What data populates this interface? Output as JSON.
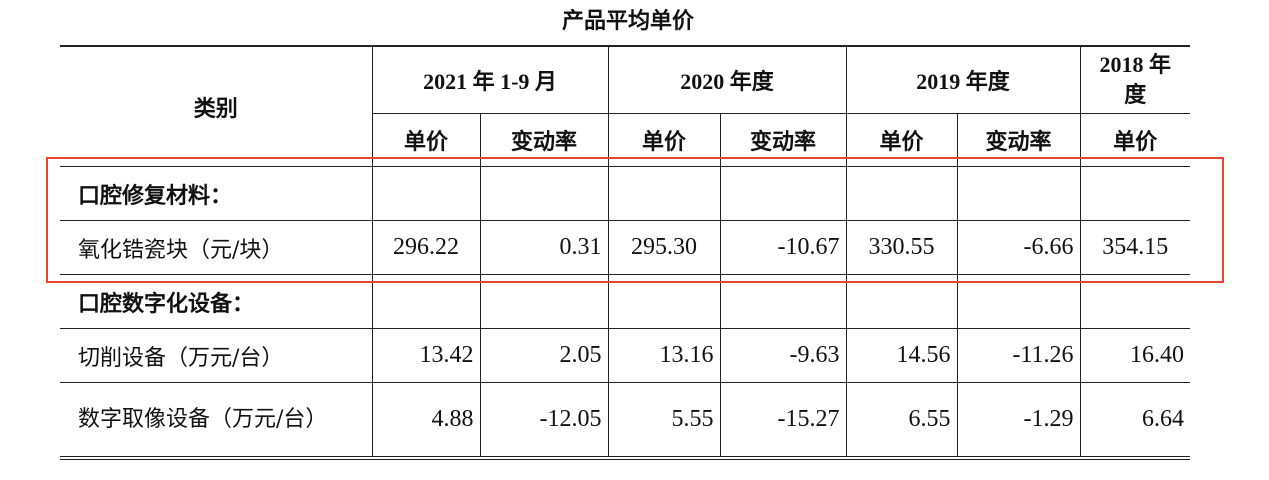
{
  "title": "产品平均单价",
  "header": {
    "category": "类别",
    "periods": [
      "2021 年 1-9 月",
      "2020 年度",
      "2019 年度",
      "2018 年度"
    ],
    "unit_price": "单价",
    "change_rate": "变动率"
  },
  "rows": [
    {
      "label": "口腔修复材料：",
      "group": true,
      "values": [
        "",
        "",
        "",
        "",
        "",
        "",
        ""
      ]
    },
    {
      "label": "氧化锆瓷块（元/块）",
      "group": false,
      "values": [
        "296.22",
        "0.31",
        "295.30",
        "-10.67",
        "330.55",
        "-6.66",
        "354.15"
      ]
    },
    {
      "label": "口腔数字化设备：",
      "group": true,
      "values": [
        "",
        "",
        "",
        "",
        "",
        "",
        ""
      ]
    },
    {
      "label": "切削设备（万元/台）",
      "group": false,
      "values": [
        "13.42",
        "2.05",
        "13.16",
        "-9.63",
        "14.56",
        "-11.26",
        "16.40"
      ]
    },
    {
      "label": "数字取像设备（万元/台）",
      "group": false,
      "values": [
        "4.88",
        "-12.05",
        "5.55",
        "-15.27",
        "6.55",
        "-1.29",
        "6.64"
      ]
    }
  ],
  "highlight_color": "#e8452f"
}
